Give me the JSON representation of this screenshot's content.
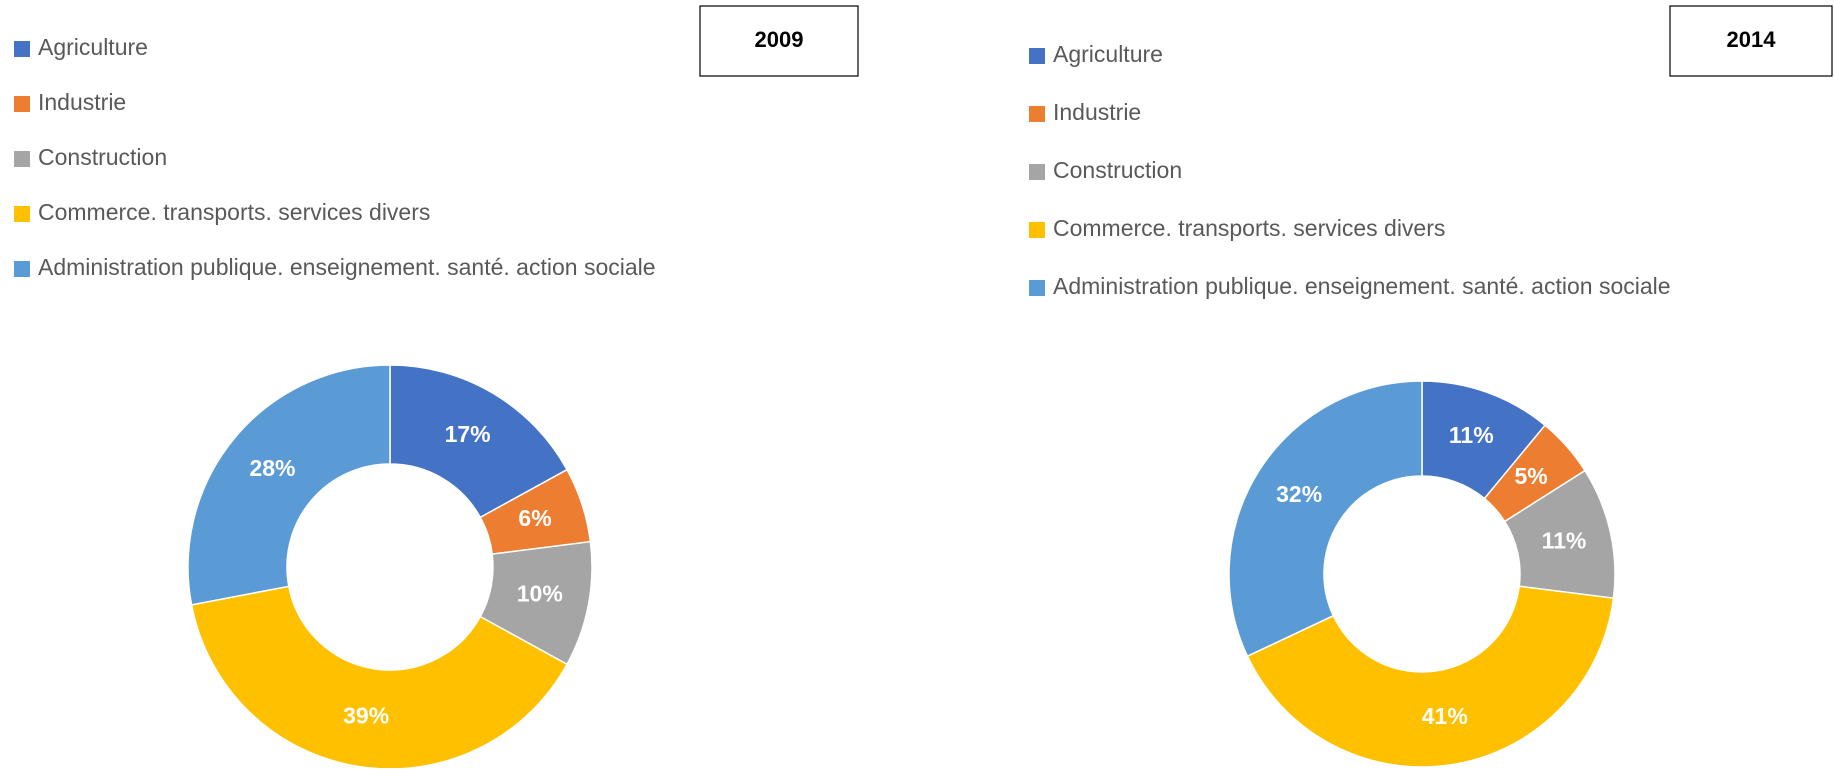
{
  "chart_data": [
    {
      "type": "pie",
      "title": "2009",
      "categories": [
        "Agriculture",
        "Industrie",
        "Construction",
        "Commerce. transports. services divers",
        "Administration publique. enseignement. santé. action sociale"
      ],
      "values": [
        17,
        6,
        10,
        39,
        28
      ],
      "value_labels": [
        "17%",
        "6%",
        "10%",
        "39%",
        "28%"
      ],
      "colors": [
        "#4472c4",
        "#ed7d31",
        "#a5a5a5",
        "#ffc000",
        "#5b9bd5"
      ]
    },
    {
      "type": "pie",
      "title": "2014",
      "categories": [
        "Agriculture",
        "Industrie",
        "Construction",
        "Commerce. transports. services divers",
        "Administration publique. enseignement. santé. action sociale"
      ],
      "values": [
        11,
        5,
        11,
        41,
        32
      ],
      "value_labels": [
        "11%",
        "5%",
        "11%",
        "41%",
        "32%"
      ],
      "colors": [
        "#4472c4",
        "#ed7d31",
        "#a5a5a5",
        "#ffc000",
        "#5b9bd5"
      ]
    }
  ]
}
